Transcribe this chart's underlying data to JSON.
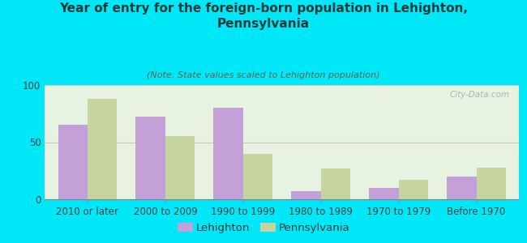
{
  "title": "Year of entry for the foreign-born population in Lehighton,\nPennsylvania",
  "subtitle": "(Note: State values scaled to Lehighton population)",
  "categories": [
    "2010 or later",
    "2000 to 2009",
    "1990 to 1999",
    "1980 to 1989",
    "1970 to 1979",
    "Before 1970"
  ],
  "lehighton_values": [
    65,
    72,
    80,
    7,
    10,
    20
  ],
  "pennsylvania_values": [
    88,
    55,
    40,
    27,
    17,
    28
  ],
  "lehighton_color": "#c4a0d8",
  "pennsylvania_color": "#c8d4a0",
  "background_outer": "#00e8f8",
  "background_inner": "#e8f2e0",
  "ylim": [
    0,
    100
  ],
  "yticks": [
    0,
    50,
    100
  ],
  "bar_width": 0.38,
  "title_fontsize": 11,
  "subtitle_fontsize": 8,
  "tick_fontsize": 8.5,
  "legend_fontsize": 9.5,
  "watermark_text": "City-Data.com",
  "watermark_color": "#9ab0a8"
}
